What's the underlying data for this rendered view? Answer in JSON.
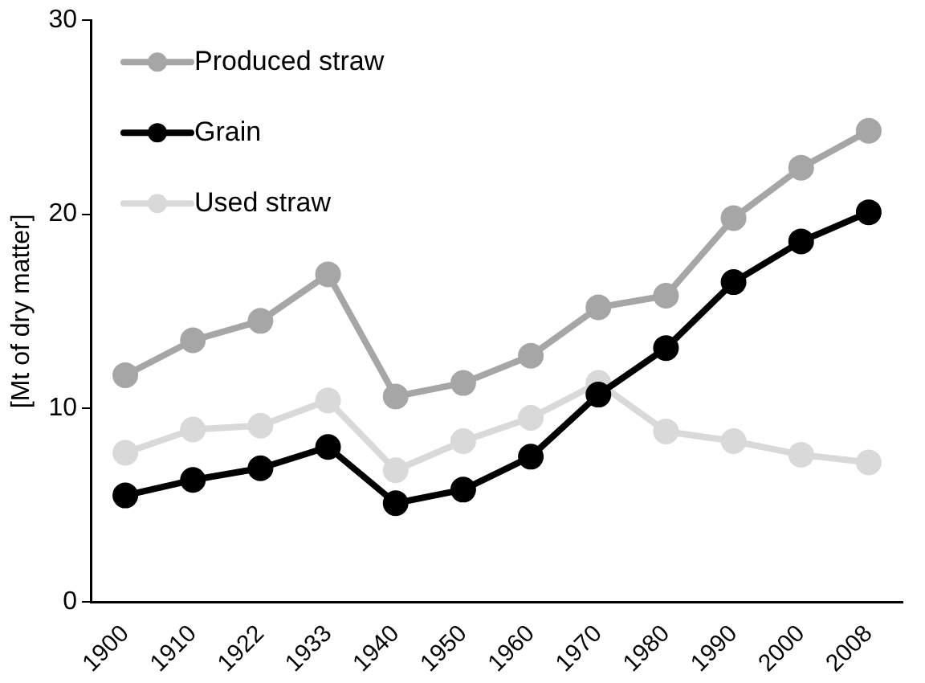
{
  "chart_data": {
    "type": "line",
    "ylabel": "[Mt of dry matter]",
    "categories": [
      "1900",
      "1910",
      "1922",
      "1933",
      "1940",
      "1950",
      "1960",
      "1970",
      "1980",
      "1990",
      "2000",
      "2008"
    ],
    "series": [
      {
        "name": "Produced straw",
        "color": "#a6a6a6",
        "values": [
          11.7,
          13.5,
          14.5,
          16.9,
          10.6,
          11.3,
          12.7,
          15.2,
          15.8,
          19.8,
          22.4,
          24.3
        ]
      },
      {
        "name": "Grain",
        "color": "#000000",
        "values": [
          5.5,
          6.3,
          6.9,
          8.0,
          5.1,
          5.8,
          7.5,
          10.7,
          13.1,
          16.5,
          18.6,
          20.1
        ]
      },
      {
        "name": "Used straw",
        "color": "#d9d9d9",
        "values": [
          7.7,
          8.9,
          9.1,
          10.4,
          6.8,
          8.3,
          9.5,
          11.3,
          8.8,
          8.3,
          7.6,
          7.2
        ]
      }
    ],
    "ylim": [
      0,
      30
    ],
    "yticks": [
      0,
      10,
      20,
      30
    ],
    "grid": false,
    "legend": "top left",
    "marker": "circle",
    "line_style": "solid"
  }
}
